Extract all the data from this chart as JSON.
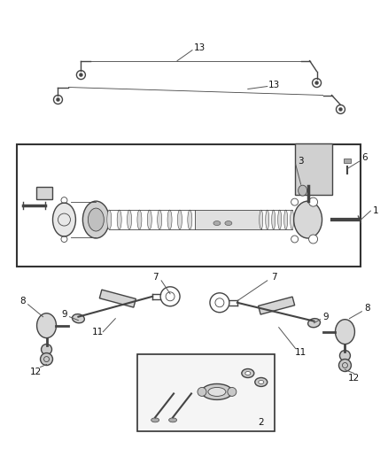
{
  "bg_color": "#ffffff",
  "fig_width": 4.38,
  "fig_height": 5.33,
  "dpi": 100,
  "line_color": "#444444",
  "lw_main": 1.0,
  "lw_thin": 0.6,
  "label_fontsize": 7.5
}
